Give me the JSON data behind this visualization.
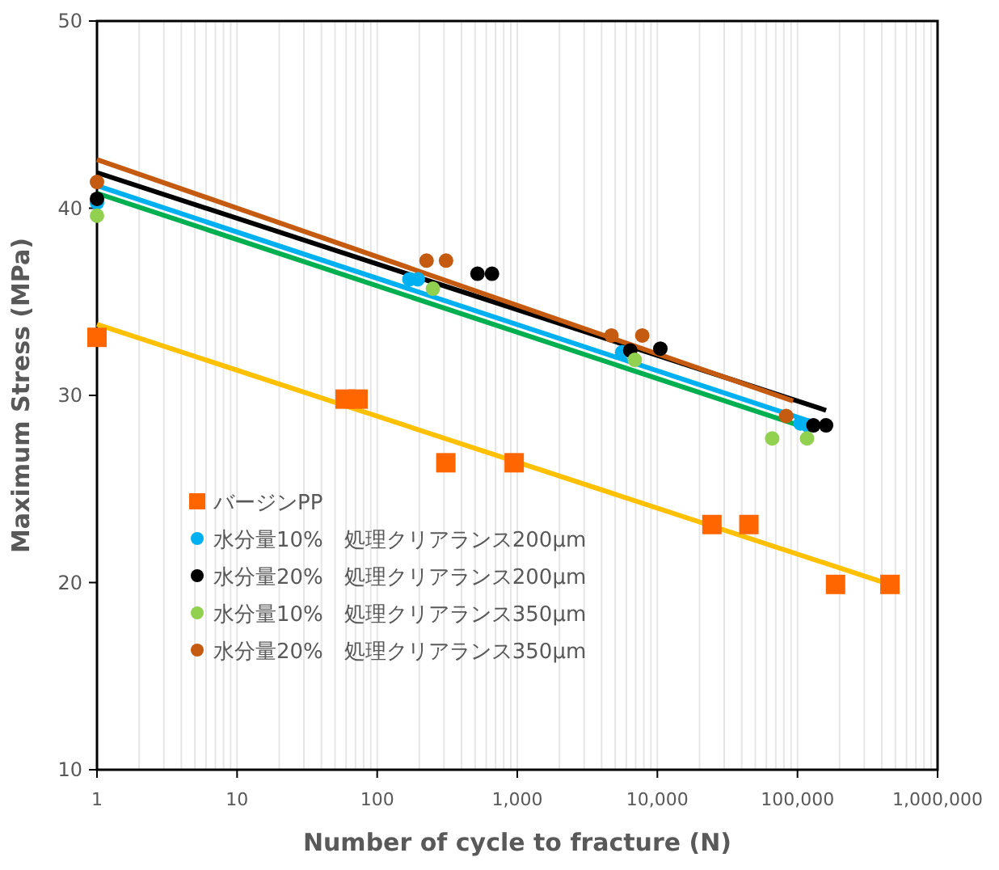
{
  "chart_data": {
    "type": "scatter",
    "xlabel": "Number of cycle  to fracture (N)",
    "ylabel": "Maximum Stress (MPa)",
    "log": "x",
    "grid": "x",
    "legend": "bottom left",
    "xlim": [
      1,
      1000000
    ],
    "xticks": [
      {
        "value": 1,
        "label": "1"
      },
      {
        "value": 10,
        "label": "10"
      },
      {
        "value": 100,
        "label": "100"
      },
      {
        "value": 1000,
        "label": "1,000"
      },
      {
        "value": 10000,
        "label": "10,000"
      },
      {
        "value": 100000,
        "label": "100,000"
      },
      {
        "value": 1000000,
        "label": "1,000,000"
      }
    ],
    "ylim": [
      10,
      50
    ],
    "yticks": [
      10,
      20,
      30,
      40,
      50
    ],
    "series": [
      {
        "name": "バージンPP",
        "marker": "square",
        "color": "#ff6600",
        "x": [
          1,
          59,
          73,
          309,
          950,
          24500,
          45000,
          187000,
          457000
        ],
        "values": [
          33.1,
          29.8,
          29.8,
          26.4,
          26.4,
          23.1,
          23.1,
          19.9,
          19.9
        ]
      },
      {
        "name": "水分量10%　処理クリアランス200μm",
        "marker": "circle",
        "color": "#00b0f0",
        "x": [
          1,
          170,
          195,
          5600,
          105000,
          118000
        ],
        "values": [
          40.3,
          36.2,
          36.2,
          32.3,
          28.5,
          28.4
        ]
      },
      {
        "name": "水分量20%　処理クリアランス200μm",
        "marker": "circle",
        "color": "#000000",
        "x": [
          1,
          520,
          660,
          6400,
          10500,
          130000,
          160000
        ],
        "values": [
          40.5,
          36.5,
          36.5,
          32.4,
          32.5,
          28.4,
          28.4
        ]
      },
      {
        "name": "水分量10%　処理クリアランス350μm",
        "marker": "circle",
        "color": "#92d050",
        "x": [
          1,
          250,
          6900,
          66000,
          117000
        ],
        "values": [
          39.6,
          35.7,
          31.9,
          27.7,
          27.7
        ]
      },
      {
        "name": "水分量20%　処理クリアランス350μm",
        "marker": "circle",
        "color": "#c55a11",
        "x": [
          1,
          225,
          310,
          4700,
          7800,
          83000
        ],
        "values": [
          41.4,
          37.2,
          37.2,
          33.2,
          33.2,
          28.9
        ]
      },
      {
        "type": "line",
        "color": "#ffc000",
        "x": [
          1,
          457000
        ],
        "values": [
          33.8,
          19.9
        ]
      },
      {
        "type": "line",
        "color": "#00b0f0",
        "x": [
          1,
          137000
        ],
        "values": [
          41.2,
          28.5
        ]
      },
      {
        "type": "line",
        "color": "#000000",
        "x": [
          1,
          160000
        ],
        "values": [
          41.9,
          29.2
        ]
      },
      {
        "type": "line",
        "color": "#00b050",
        "x": [
          1,
          123000
        ],
        "values": [
          40.8,
          28.2
        ]
      },
      {
        "type": "line",
        "color": "#c55a11",
        "x": [
          1,
          93000
        ],
        "values": [
          42.6,
          29.7
        ]
      }
    ]
  }
}
